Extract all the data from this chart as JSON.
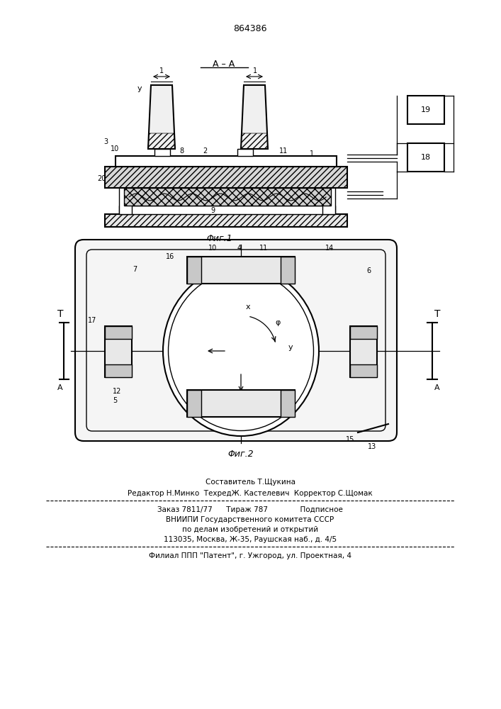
{
  "patent_number": "864386",
  "fig1_caption": "Φиг.1",
  "fig2_caption": "Φиг.2",
  "footer_lines": [
    "Составитель Т.Щукина",
    "Редактор Н.Минко  ТехредЖ. Кастелевич  Корректор С.Щомак",
    "Заказ 7811/77      Тираж 787              Подписное",
    "ВНИИПИ Государственного комитета СССР",
    "по делам изобретений и открытий",
    "113035, Москва, Ж-35, Раушская наб., д. 4/5",
    "Филиал ППП \"Патент\", г. Ужгород, ул. Проектная, 4"
  ],
  "bg_color": "#ffffff",
  "line_color": "#000000"
}
